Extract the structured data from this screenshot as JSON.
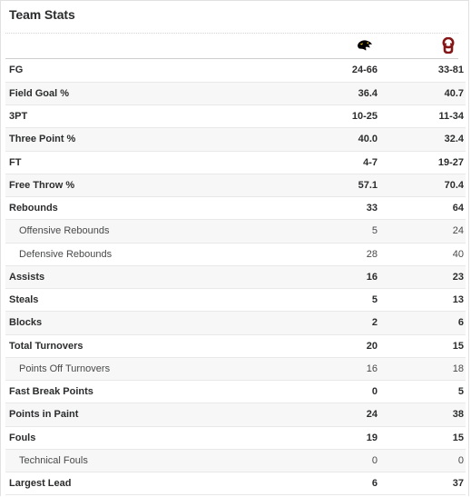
{
  "title": "Team Stats",
  "teams": [
    {
      "name": "Iowa",
      "logo_icon": "iowa-hawkeye-icon",
      "color": "#000000"
    },
    {
      "name": "Oklahoma",
      "logo_icon": "oklahoma-ou-icon",
      "color": "#841617"
    }
  ],
  "rows": [
    {
      "label": "FG",
      "away": "24-66",
      "home": "33-81",
      "sub": false
    },
    {
      "label": "Field Goal %",
      "away": "36.4",
      "home": "40.7",
      "sub": false
    },
    {
      "label": "3PT",
      "away": "10-25",
      "home": "11-34",
      "sub": false
    },
    {
      "label": "Three Point %",
      "away": "40.0",
      "home": "32.4",
      "sub": false
    },
    {
      "label": "FT",
      "away": "4-7",
      "home": "19-27",
      "sub": false
    },
    {
      "label": "Free Throw %",
      "away": "57.1",
      "home": "70.4",
      "sub": false
    },
    {
      "label": "Rebounds",
      "away": "33",
      "home": "64",
      "sub": false
    },
    {
      "label": "Offensive Rebounds",
      "away": "5",
      "home": "24",
      "sub": true
    },
    {
      "label": "Defensive Rebounds",
      "away": "28",
      "home": "40",
      "sub": true
    },
    {
      "label": "Assists",
      "away": "16",
      "home": "23",
      "sub": false
    },
    {
      "label": "Steals",
      "away": "5",
      "home": "13",
      "sub": false
    },
    {
      "label": "Blocks",
      "away": "2",
      "home": "6",
      "sub": false
    },
    {
      "label": "Total Turnovers",
      "away": "20",
      "home": "15",
      "sub": false
    },
    {
      "label": "Points Off Turnovers",
      "away": "16",
      "home": "18",
      "sub": true
    },
    {
      "label": "Fast Break Points",
      "away": "0",
      "home": "5",
      "sub": false
    },
    {
      "label": "Points in Paint",
      "away": "24",
      "home": "38",
      "sub": false
    },
    {
      "label": "Fouls",
      "away": "19",
      "home": "15",
      "sub": false
    },
    {
      "label": "Technical Fouls",
      "away": "0",
      "home": "0",
      "sub": true
    },
    {
      "label": "Largest Lead",
      "away": "6",
      "home": "37",
      "sub": false
    }
  ]
}
